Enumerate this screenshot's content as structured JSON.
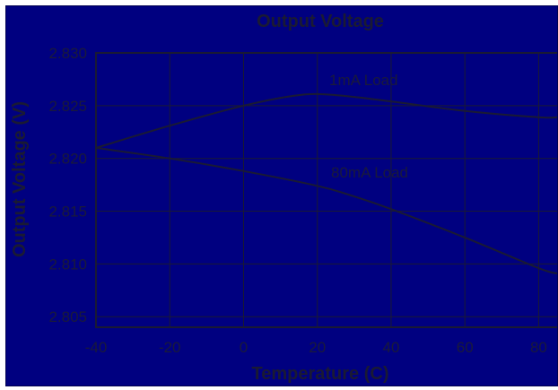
{
  "chart_data": {
    "type": "line",
    "title": "Output Voltage",
    "xlabel": "Temperature (C)",
    "ylabel": "Output Voltage (V)",
    "xlim": [
      -40,
      85
    ],
    "ylim": [
      2.804,
      2.83
    ],
    "x_ticks": [
      "-40",
      "-20",
      "0",
      "20",
      "40",
      "60",
      "80"
    ],
    "y_ticks": [
      "2.805",
      "2.810",
      "2.815",
      "2.820",
      "2.825",
      "2.830"
    ],
    "grid": true,
    "series": [
      {
        "name": "1mA Load",
        "x": [
          -40,
          -20,
          0,
          15,
          25,
          40,
          60,
          80,
          85
        ],
        "y": [
          2.821,
          2.8231,
          2.825,
          2.826,
          2.826,
          2.8254,
          2.8245,
          2.8239,
          2.8239
        ]
      },
      {
        "name": "80mA Load",
        "x": [
          -40,
          -20,
          0,
          20,
          30,
          40,
          60,
          80,
          85
        ],
        "y": [
          2.821,
          2.82,
          2.8188,
          2.8174,
          2.8164,
          2.8152,
          2.8125,
          2.8096,
          2.8091
        ]
      }
    ],
    "colors": {
      "background": "#000080",
      "line": "#1a1a33",
      "grid": "#1a1a33",
      "text": "#1a1a3a"
    }
  }
}
